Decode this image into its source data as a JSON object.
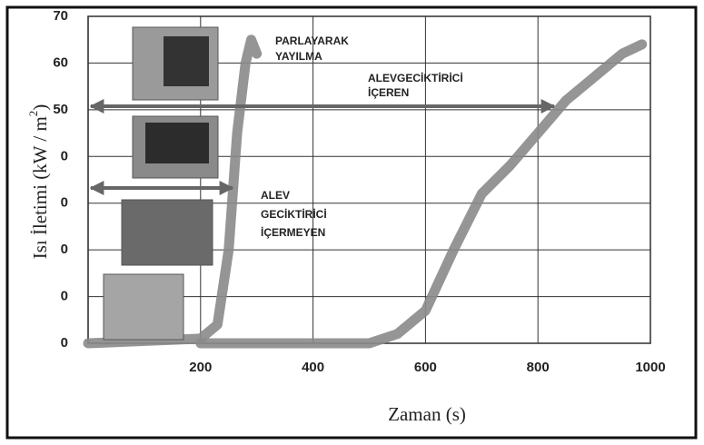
{
  "chart_data": {
    "type": "line",
    "xlabel": "Zaman (s)",
    "ylabel": [
      "Isı İletimi (kW / m",
      "2",
      ")"
    ],
    "annotations": [
      "PARLAYARAK",
      "YAYILMA",
      "ALEVGECİKTİRİCİ",
      "İÇEREN",
      "ALEV",
      "GECİKTİRİCİ",
      "İÇERMEYEN"
    ],
    "xlim": [
      0,
      1000
    ],
    "ylim": [
      0,
      70
    ],
    "xticks": [
      200,
      400,
      600,
      800,
      1000
    ],
    "yticks": [
      0,
      {
        "value": 10,
        "label": "0"
      },
      {
        "value": 20,
        "label": "0"
      },
      {
        "value": 30,
        "label": "0"
      },
      {
        "value": 40,
        "label": "0"
      },
      50,
      60,
      70
    ],
    "grid": true,
    "series": [
      {
        "color": "#8a8a8a",
        "x": [
          0,
          200,
          230,
          250,
          265,
          280,
          290,
          300
        ],
        "values": [
          0,
          1,
          4,
          20,
          45,
          60,
          65,
          62
        ]
      },
      {
        "color": "#8a8a8a",
        "x": [
          200,
          500,
          550,
          600,
          650,
          700,
          750,
          800,
          850,
          900,
          950,
          985
        ],
        "values": [
          0,
          0,
          2,
          7,
          20,
          32,
          38,
          45,
          52,
          57,
          62,
          64
        ]
      }
    ]
  }
}
